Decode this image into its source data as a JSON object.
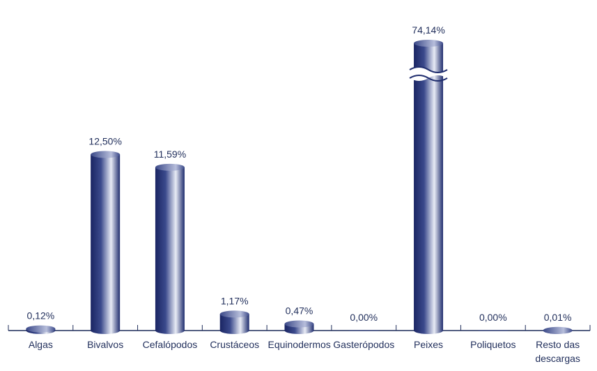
{
  "chart_data": {
    "type": "bar",
    "categories": [
      "Algas",
      "Bivalvos",
      "Cefalópodos",
      "Crustáceos",
      "Equinodermos",
      "Gasterópodos",
      "Peixes",
      "Poliquetos",
      "Resto das descargas"
    ],
    "values": [
      0.12,
      12.5,
      11.59,
      1.17,
      0.47,
      0,
      74.14,
      0,
      0.01
    ],
    "value_labels": [
      "0,12%",
      "12,50%",
      "11,59%",
      "1,17%",
      "0,47%",
      "0,00%",
      "74,14%",
      "0,00%",
      "0,01%"
    ],
    "color": "#1f2d6e"
  }
}
